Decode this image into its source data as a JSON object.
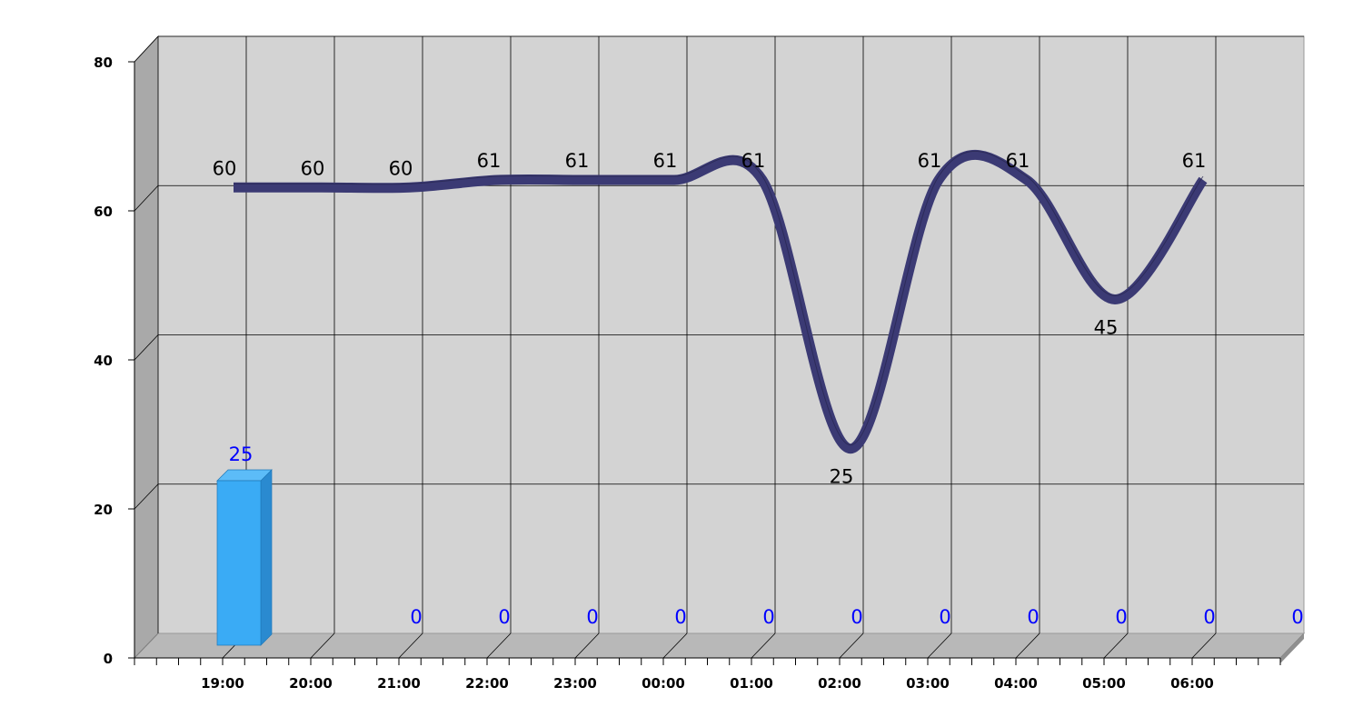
{
  "chart_data": {
    "type": "bar",
    "categories": [
      "19:00",
      "20:00",
      "21:00",
      "22:00",
      "23:00",
      "00:00",
      "01:00",
      "02:00",
      "03:00",
      "04:00",
      "05:00",
      "06:00"
    ],
    "series": [
      {
        "type": "bar",
        "values": [
          25,
          0,
          0,
          0,
          0,
          0,
          0,
          0,
          0,
          0,
          0,
          0
        ]
      },
      {
        "type": "line",
        "values": [
          60,
          60,
          60,
          61,
          61,
          61,
          61,
          25,
          61,
          61,
          45,
          61
        ]
      }
    ],
    "ylim": [
      0,
      80
    ],
    "yticks": [
      0,
      20,
      40,
      60,
      80
    ],
    "grid": true,
    "three_d": true,
    "colors": {
      "bar_front": "#3aabf5",
      "bar_side": "#2a8ad0",
      "bar_top": "#5cbcf8",
      "bar_label": "#0000ff",
      "line_ribbon": "#3b3a74",
      "plot_back": "#d3d3d3",
      "plot_wall": "#a9a9a9",
      "plot_floor": "#b8b8b8"
    }
  }
}
